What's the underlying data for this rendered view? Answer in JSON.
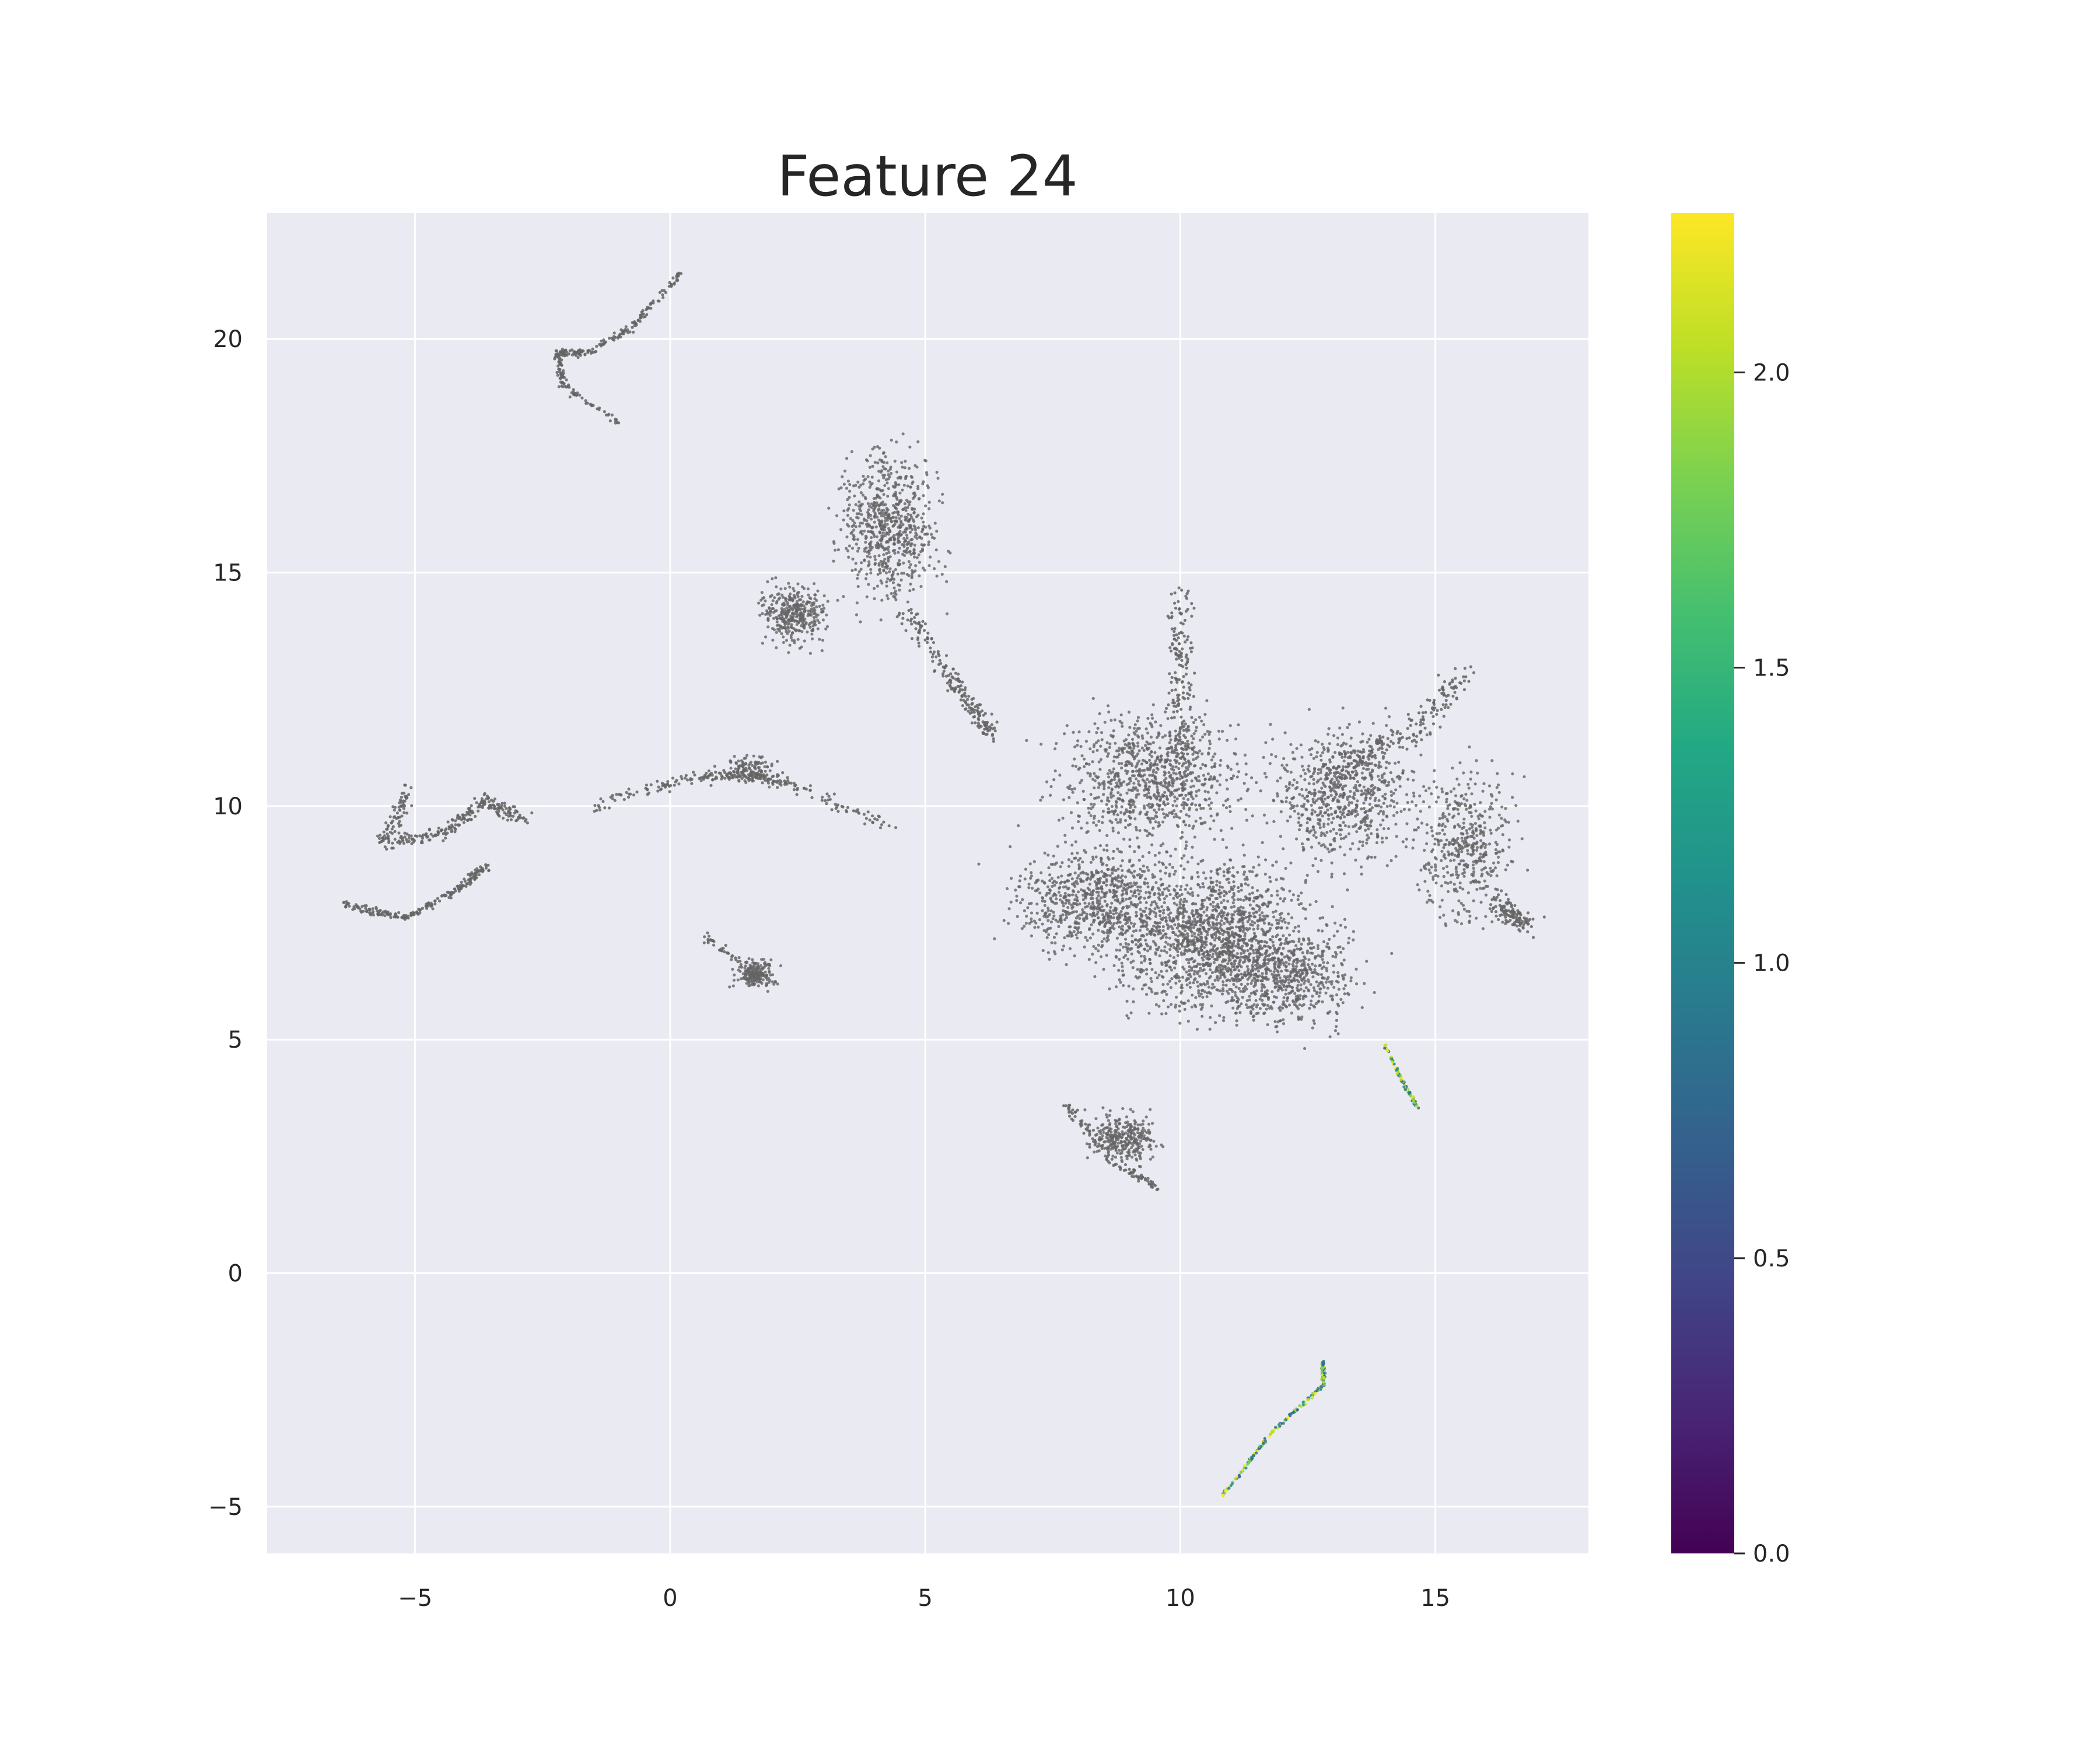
{
  "chart_data": {
    "type": "scatter",
    "title": "Feature 24",
    "xlabel": "",
    "ylabel": "",
    "xlim": [
      -7.9,
      18.0
    ],
    "ylim": [
      -6.0,
      22.7
    ],
    "xticks": [
      -5,
      0,
      5,
      10,
      15
    ],
    "xtick_labels": [
      "−5",
      "0",
      "5",
      "10",
      "15"
    ],
    "yticks": [
      -5,
      0,
      5,
      10,
      15,
      20
    ],
    "ytick_labels": [
      "−5",
      "0",
      "5",
      "10",
      "15",
      "20"
    ],
    "grid": true,
    "background_color": "#eaeaf2",
    "grid_color": "#ffffff",
    "point_color_zero": "#646464",
    "colormap": "viridis",
    "colorbar": {
      "range": [
        0.0,
        2.27
      ],
      "ticks": [
        0.0,
        0.5,
        1.0,
        1.5,
        2.0
      ],
      "tick_labels": [
        "0.0",
        "0.5",
        "1.0",
        "1.5",
        "2.0"
      ]
    },
    "clusters": [
      {
        "name": "large-hub",
        "points_gray": "dense",
        "x_range": [
          6.0,
          17.0
        ],
        "y_range": [
          4.2,
          14.7
        ]
      },
      {
        "name": "upper-leaf",
        "x_range": [
          1.8,
          6.2
        ],
        "y_range": [
          12.8,
          18.2
        ]
      },
      {
        "name": "top-hook",
        "x_range": [
          -2.3,
          0.3
        ],
        "y_range": [
          18.2,
          21.5
        ]
      },
      {
        "name": "left-crescent",
        "x_range": [
          -6.6,
          -2.7
        ],
        "y_range": [
          7.6,
          10.4
        ]
      },
      {
        "name": "mid-branch",
        "x_range": [
          -1.5,
          4.4
        ],
        "y_range": [
          9.5,
          12.2
        ]
      },
      {
        "name": "small-star",
        "x_range": [
          0.7,
          2.5
        ],
        "y_range": [
          5.8,
          7.2
        ]
      },
      {
        "name": "lower-blob",
        "x_range": [
          7.7,
          10.0
        ],
        "y_range": [
          1.7,
          4.2
        ]
      },
      {
        "name": "right-streak",
        "x_range": [
          14.0,
          14.7
        ],
        "y_range": [
          3.5,
          4.9
        ],
        "colored": true
      },
      {
        "name": "bottom-streak",
        "x_range": [
          10.8,
          12.8
        ],
        "y_range": [
          -4.8,
          -1.9
        ],
        "colored": true
      }
    ]
  }
}
